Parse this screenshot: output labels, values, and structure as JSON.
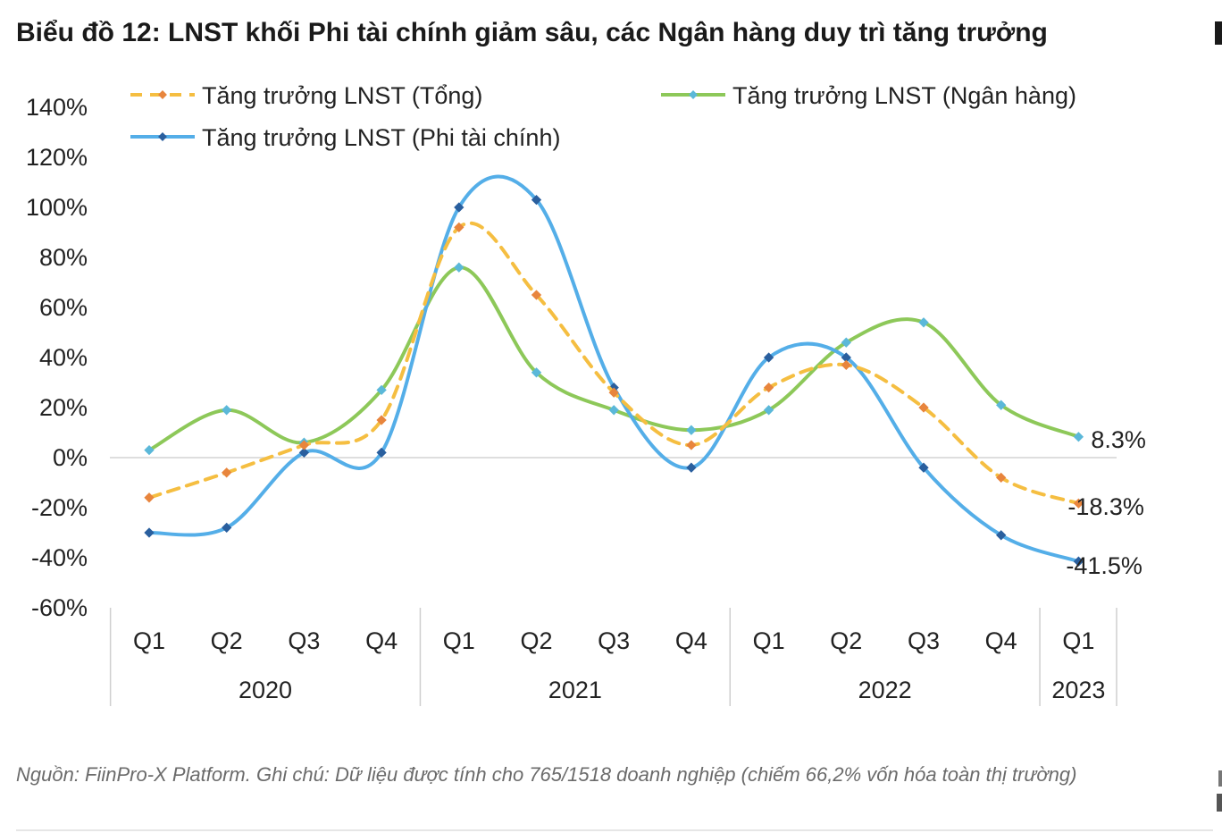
{
  "title": "Biểu đồ 12: LNST khối Phi tài chính giảm sâu, các Ngân hàng duy trì tăng trưởng",
  "note": "Nguồn: FiinPro-X Platform. Ghi chú: Dữ liệu được tính cho 765/1518 doanh nghiệp (chiếm 66,2% vốn hóa toàn thị trường)",
  "chart_data": {
    "type": "line",
    "categories": [
      "Q1",
      "Q2",
      "Q3",
      "Q4",
      "Q1",
      "Q2",
      "Q3",
      "Q4",
      "Q1",
      "Q2",
      "Q3",
      "Q4",
      "Q1"
    ],
    "years": [
      {
        "label": "2020",
        "count": 4
      },
      {
        "label": "2021",
        "count": 4
      },
      {
        "label": "2022",
        "count": 4
      },
      {
        "label": "2023",
        "count": 1
      }
    ],
    "ylim": [
      -0.6,
      1.4
    ],
    "yticks": [
      -0.6,
      -0.4,
      -0.2,
      0,
      0.2,
      0.4,
      0.6,
      0.8,
      1.0,
      1.2,
      1.4
    ],
    "ytick_labels": [
      "-60%",
      "-40%",
      "-20%",
      "0%",
      "20%",
      "40%",
      "60%",
      "80%",
      "100%",
      "120%",
      "140%"
    ],
    "grid": false,
    "legend_position": "top",
    "series": [
      {
        "name": "Tăng trưởng LNST (Tổng)",
        "color": "#F5BE41",
        "marker_color": "#E8853D",
        "dashed": true,
        "values": [
          -0.16,
          -0.06,
          0.05,
          0.15,
          0.92,
          0.65,
          0.26,
          0.05,
          0.28,
          0.37,
          0.2,
          -0.08,
          -0.183
        ],
        "end_label": "-18.3%"
      },
      {
        "name": "Tăng trưởng LNST (Ngân hàng)",
        "color": "#8DC859",
        "marker_color": "#5BB8D9",
        "dashed": false,
        "values": [
          0.03,
          0.19,
          0.06,
          0.27,
          0.76,
          0.34,
          0.19,
          0.11,
          0.19,
          0.46,
          0.54,
          0.21,
          0.083
        ],
        "end_label": "8.3%"
      },
      {
        "name": "Tăng trưởng LNST (Phi tài chính)",
        "color": "#54AEE8",
        "marker_color": "#2A5F9E",
        "dashed": false,
        "values": [
          -0.3,
          -0.28,
          0.02,
          0.02,
          1.0,
          1.03,
          0.28,
          -0.04,
          0.4,
          0.4,
          -0.04,
          -0.31,
          -0.415
        ],
        "end_label": "-41.5%"
      }
    ]
  }
}
